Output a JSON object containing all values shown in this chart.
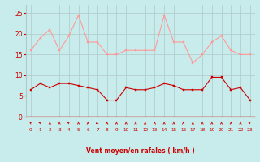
{
  "x": [
    0,
    1,
    2,
    3,
    4,
    5,
    6,
    7,
    8,
    9,
    10,
    11,
    12,
    13,
    14,
    15,
    16,
    17,
    18,
    19,
    20,
    21,
    22,
    23
  ],
  "wind_mean": [
    6.5,
    8,
    7,
    8,
    8,
    7.5,
    7,
    6.5,
    4,
    4,
    7,
    6.5,
    6.5,
    7,
    8,
    7.5,
    6.5,
    6.5,
    6.5,
    9.5,
    9.5,
    6.5,
    7,
    4
  ],
  "wind_gust": [
    16,
    19,
    21,
    16,
    19.5,
    24.5,
    18,
    18,
    15,
    15,
    16,
    16,
    16,
    16,
    24.5,
    18,
    18,
    13,
    15,
    18,
    19.5,
    16,
    15,
    15
  ],
  "mean_color": "#cc0000",
  "gust_color": "#ff9999",
  "bg_color": "#c8ecec",
  "grid_color": "#b0c8c8",
  "xlabel": "Vent moyen/en rafales ( km/h )",
  "xlabel_color": "#cc0000",
  "tick_color": "#cc0000",
  "ylim": [
    0,
    27
  ],
  "yticks": [
    0,
    5,
    10,
    15,
    20,
    25
  ],
  "arrow_color": "#cc0000",
  "wind_dirs": [
    210,
    225,
    180,
    180,
    225,
    180,
    180,
    315,
    180,
    180,
    180,
    180,
    180,
    180,
    180,
    180,
    180,
    180,
    180,
    180,
    180,
    180,
    180,
    225
  ]
}
